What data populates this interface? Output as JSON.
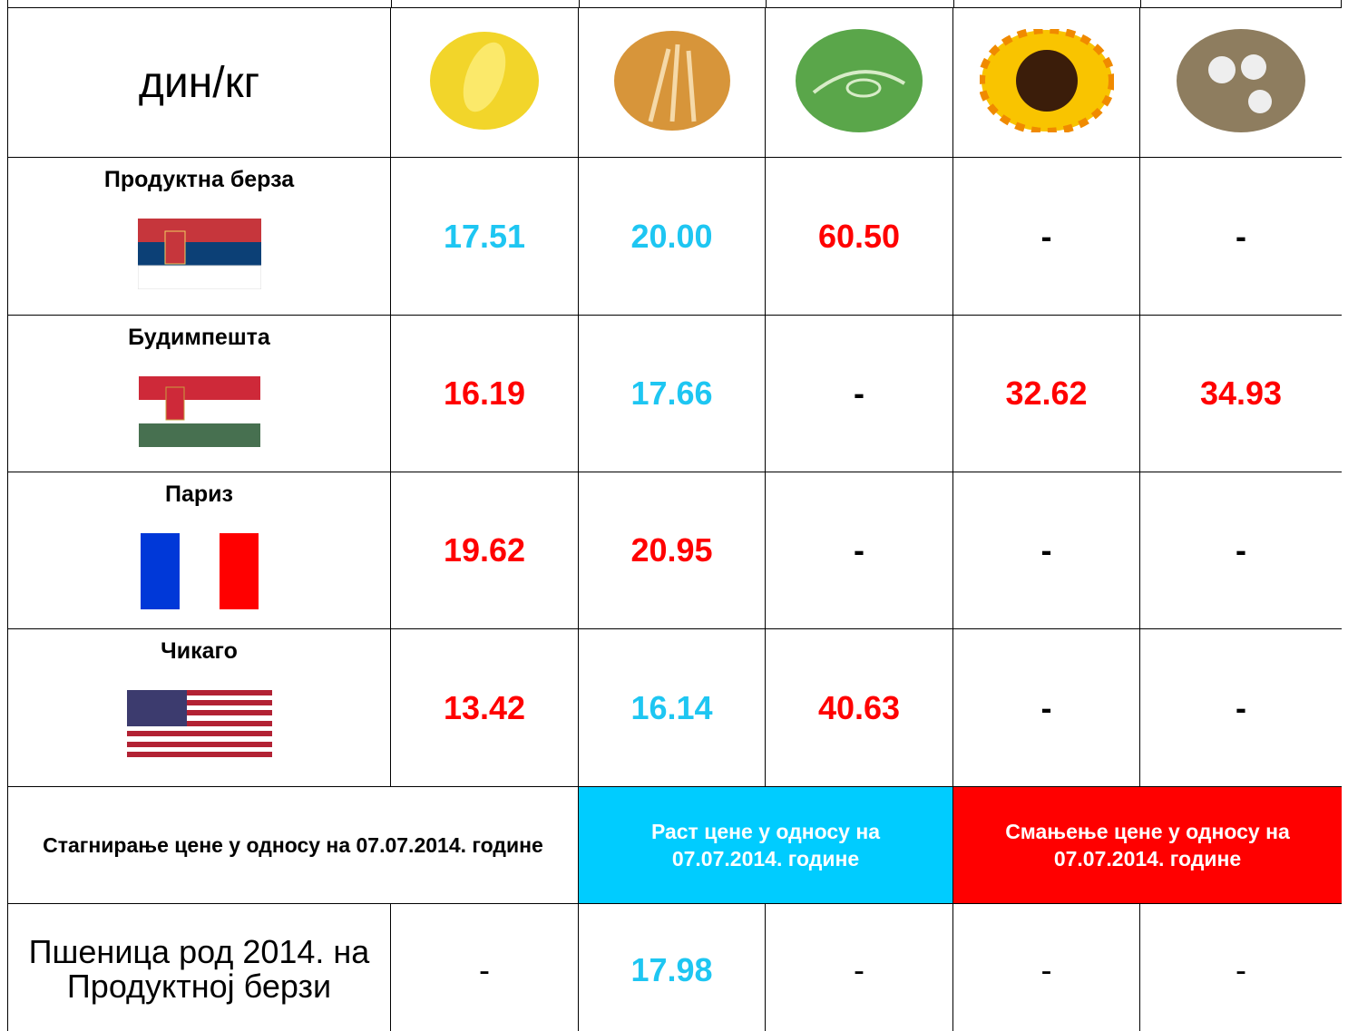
{
  "header": {
    "unit": "дин/кг"
  },
  "rows": [
    {
      "exchange": "Продуктна берза",
      "values": [
        "17.51",
        "20.00",
        "60.50",
        "-",
        "-"
      ]
    },
    {
      "exchange": "Будимпешта",
      "values": [
        "16.19",
        "17.66",
        "-",
        "32.62",
        "34.93"
      ]
    },
    {
      "exchange": "Париз",
      "values": [
        "19.62",
        "20.95",
        "-",
        "-",
        "-"
      ]
    },
    {
      "exchange": "Чикаго",
      "values": [
        "13.42",
        "16.14",
        "40.63",
        "-",
        "-"
      ]
    }
  ],
  "legend": {
    "stagnation": "Стагнирање цене у односу на 07.07.2014. године",
    "rise": "Раст цене у односу на 07.07.2014. године",
    "fall": "Смањење цене у односу на 07.07.2014. године"
  },
  "footer_row": {
    "label": "Пшеница род 2014. на Продуктној берзи",
    "values": [
      "-",
      "17.98",
      "-",
      "-",
      "-"
    ]
  }
}
